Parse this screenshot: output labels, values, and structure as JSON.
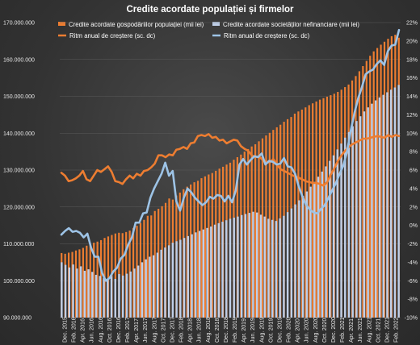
{
  "chart_data": {
    "type": "bar",
    "title": "Credite acordate populației  și firmelor",
    "left_ylim": [
      90000000,
      170000000
    ],
    "right_ylim": [
      -10,
      22
    ],
    "left_ticks": [
      "90.000.000",
      "100.000.000",
      "110.000.000",
      "120.000.000",
      "130.000.000",
      "140.000.000",
      "150.000.000",
      "160.000.000",
      "170.000.000"
    ],
    "right_ticks": [
      "-10%",
      "-8%",
      "-6%",
      "-4%",
      "-2%",
      "0%",
      "2%",
      "4%",
      "6%",
      "8%",
      "10%",
      "12%",
      "14%",
      "16%",
      "18%",
      "20%",
      "22%"
    ],
    "x_labels": [
      "Dec. 2015",
      "Feb. 2016",
      "Apr. 2016",
      "Jun. 2016",
      "Aug. 2016",
      "Oct. 2016",
      "Dec. 2016",
      "Feb. 2017",
      "Apr. 2017",
      "Jun. 2017",
      "Aug. 2017",
      "Oct. 2017",
      "Dec. 2017",
      "Feb. 2018",
      "Apr. 2018",
      "Jun. 2018",
      "Aug. 2018",
      "Oct. 2018",
      "Dec. 2018",
      "Feb. 2019",
      "Apr. 2019",
      "Jun. 2019",
      "Aug. 2019",
      "Oct. 2019",
      "Dec. 2019",
      "Feb. 2020",
      "Apr. 2020",
      "Jun. 2020",
      "Aug. 2020",
      "Oct. 2020",
      "Dec. 2020",
      "Feb. 2021",
      "Apr. 2021",
      "Jun. 2021",
      "Aug. 2021",
      "Oct. 2021",
      "Dec. 2021",
      "Feb. 2022"
    ],
    "grid": true,
    "legend_position": "top",
    "series": [
      {
        "name": "Credite acordate gospodăriilor populației (mii lei)",
        "kind": "bar",
        "axis": "left",
        "color": "#ed7d31",
        "values": [
          107.5,
          107.3,
          107.6,
          107.8,
          108.2,
          108.5,
          108.9,
          109.5,
          109.7,
          110.3,
          110.6,
          111.0,
          111.6,
          112.0,
          112.4,
          112.8,
          113.0,
          112.9,
          113.2,
          113.6,
          114.3,
          114.9,
          115.7,
          116.5,
          117.6,
          117.7,
          118.9,
          119.5,
          120.2,
          121.1,
          122.3,
          122.0,
          123.1,
          123.9,
          124.8,
          125.5,
          126.1,
          126.7,
          127.1,
          127.8,
          128.3,
          128.8,
          129.2,
          129.8,
          130.4,
          130.9,
          131.5,
          132.0,
          132.8,
          133.5,
          134.2,
          135.0,
          135.7,
          136.4,
          137.0,
          137.8,
          138.6,
          139.4,
          140.1,
          140.9,
          141.6,
          142.3,
          143.1,
          143.8,
          144.4,
          145.3,
          145.9,
          146.4,
          147.0,
          147.6,
          148.1,
          148.6,
          149.1,
          149.5,
          149.9,
          150.3,
          150.7,
          151.2,
          151.8,
          152.5,
          153.2,
          154.3,
          155.5,
          156.8,
          158.2,
          159.6,
          161.0,
          162.2,
          163.1,
          164.0,
          164.8,
          165.6,
          166.3,
          166.7,
          165.9
        ]
      },
      {
        "name": "Credite acordate societăților nefinanciare (mii lei)",
        "kind": "bar",
        "axis": "left",
        "color": "#bfcfe8",
        "values": [
          105.0,
          104.3,
          103.6,
          104.4,
          103.3,
          103.9,
          102.7,
          103.1,
          102.4,
          101.6,
          101.3,
          100.8,
          100.2,
          101.2,
          100.5,
          101.8,
          101.4,
          101.9,
          102.5,
          103.3,
          104.1,
          105.0,
          105.8,
          106.5,
          106.9,
          107.6,
          108.4,
          109.0,
          109.6,
          110.3,
          110.7,
          111.1,
          111.6,
          112.1,
          112.6,
          113.1,
          113.5,
          113.9,
          114.3,
          114.7,
          115.2,
          115.6,
          116.0,
          116.4,
          116.8,
          117.1,
          117.4,
          117.8,
          118.1,
          118.4,
          118.7,
          118.5,
          117.9,
          117.4,
          116.8,
          116.5,
          116.2,
          116.9,
          117.6,
          118.6,
          119.6,
          120.7,
          121.8,
          123.0,
          124.2,
          125.5,
          126.8,
          128.2,
          129.6,
          131.0,
          132.5,
          134.0,
          135.6,
          137.2,
          138.8,
          140.3,
          141.9,
          143.3,
          144.6,
          145.9,
          147.0,
          148.0,
          148.9,
          149.7,
          150.4,
          151.1,
          151.8,
          152.4,
          153.1
        ]
      },
      {
        "name": "Ritm anual de creștere (sc. dc)",
        "kind": "line",
        "axis": "right",
        "color": "#ed7d31",
        "values": [
          5.7,
          5.4,
          4.8,
          4.9,
          5.1,
          5.4,
          5.9,
          5.0,
          4.8,
          5.4,
          6.0,
          5.8,
          6.1,
          6.4,
          5.8,
          4.8,
          4.7,
          4.5,
          5.0,
          5.4,
          5.1,
          5.6,
          5.4,
          5.9,
          6.0,
          6.3,
          6.7,
          7.6,
          7.6,
          7.4,
          7.7,
          7.6,
          8.2,
          8.3,
          8.5,
          8.3,
          8.9,
          9.0,
          9.7,
          9.8,
          9.7,
          9.9,
          9.5,
          9.6,
          9.2,
          9.3,
          8.9,
          9.1,
          9.3,
          9.2,
          8.6,
          8.3,
          8.1,
          7.6,
          7.4,
          7.5,
          7.1,
          6.9,
          6.8,
          7.2,
          6.6,
          6.1,
          5.9,
          5.7,
          5.5,
          5.3,
          5.2,
          5.0,
          4.8,
          4.7,
          4.6,
          4.6,
          4.5,
          4.3,
          4.7,
          5.5,
          6.2,
          7.0,
          7.6,
          8.1,
          8.5,
          8.8,
          9.0,
          9.2,
          9.4,
          9.4,
          9.5,
          9.6,
          9.7,
          9.6,
          9.5,
          9.8,
          9.6,
          9.8,
          9.7
        ]
      },
      {
        "name": "Ritm anual de creștere (sc. dc)",
        "kind": "line",
        "axis": "right",
        "color": "#9dc3e6",
        "values": [
          -1.0,
          -0.6,
          -0.3,
          -0.7,
          -0.6,
          -0.8,
          -1.3,
          -0.9,
          -2.4,
          -3.4,
          -3.4,
          -5.2,
          -6.0,
          -5.7,
          -5.0,
          -4.6,
          -3.6,
          -3.2,
          -2.1,
          -1.3,
          0.3,
          0.3,
          1.3,
          1.4,
          3.0,
          4.0,
          4.8,
          5.6,
          6.8,
          5.4,
          5.9,
          2.6,
          1.6,
          3.0,
          4.0,
          3.6,
          3.0,
          2.6,
          2.2,
          2.5,
          3.1,
          2.9,
          3.3,
          3.2,
          2.6,
          3.2,
          2.5,
          3.8,
          6.6,
          7.2,
          6.6,
          7.1,
          7.5,
          7.4,
          7.8,
          6.6,
          7.0,
          6.9,
          6.6,
          6.7,
          7.3,
          6.4,
          6.3,
          5.6,
          4.2,
          3.1,
          2.2,
          1.7,
          1.4,
          1.3,
          1.8,
          2.2,
          3.0,
          3.8,
          4.6,
          5.6,
          6.5,
          8.0,
          10.3,
          12.2,
          13.8,
          15.0,
          16.4,
          16.7,
          16.9,
          17.5,
          17.9,
          17.4,
          18.9,
          19.5,
          19.6,
          21.2
        ]
      }
    ]
  }
}
